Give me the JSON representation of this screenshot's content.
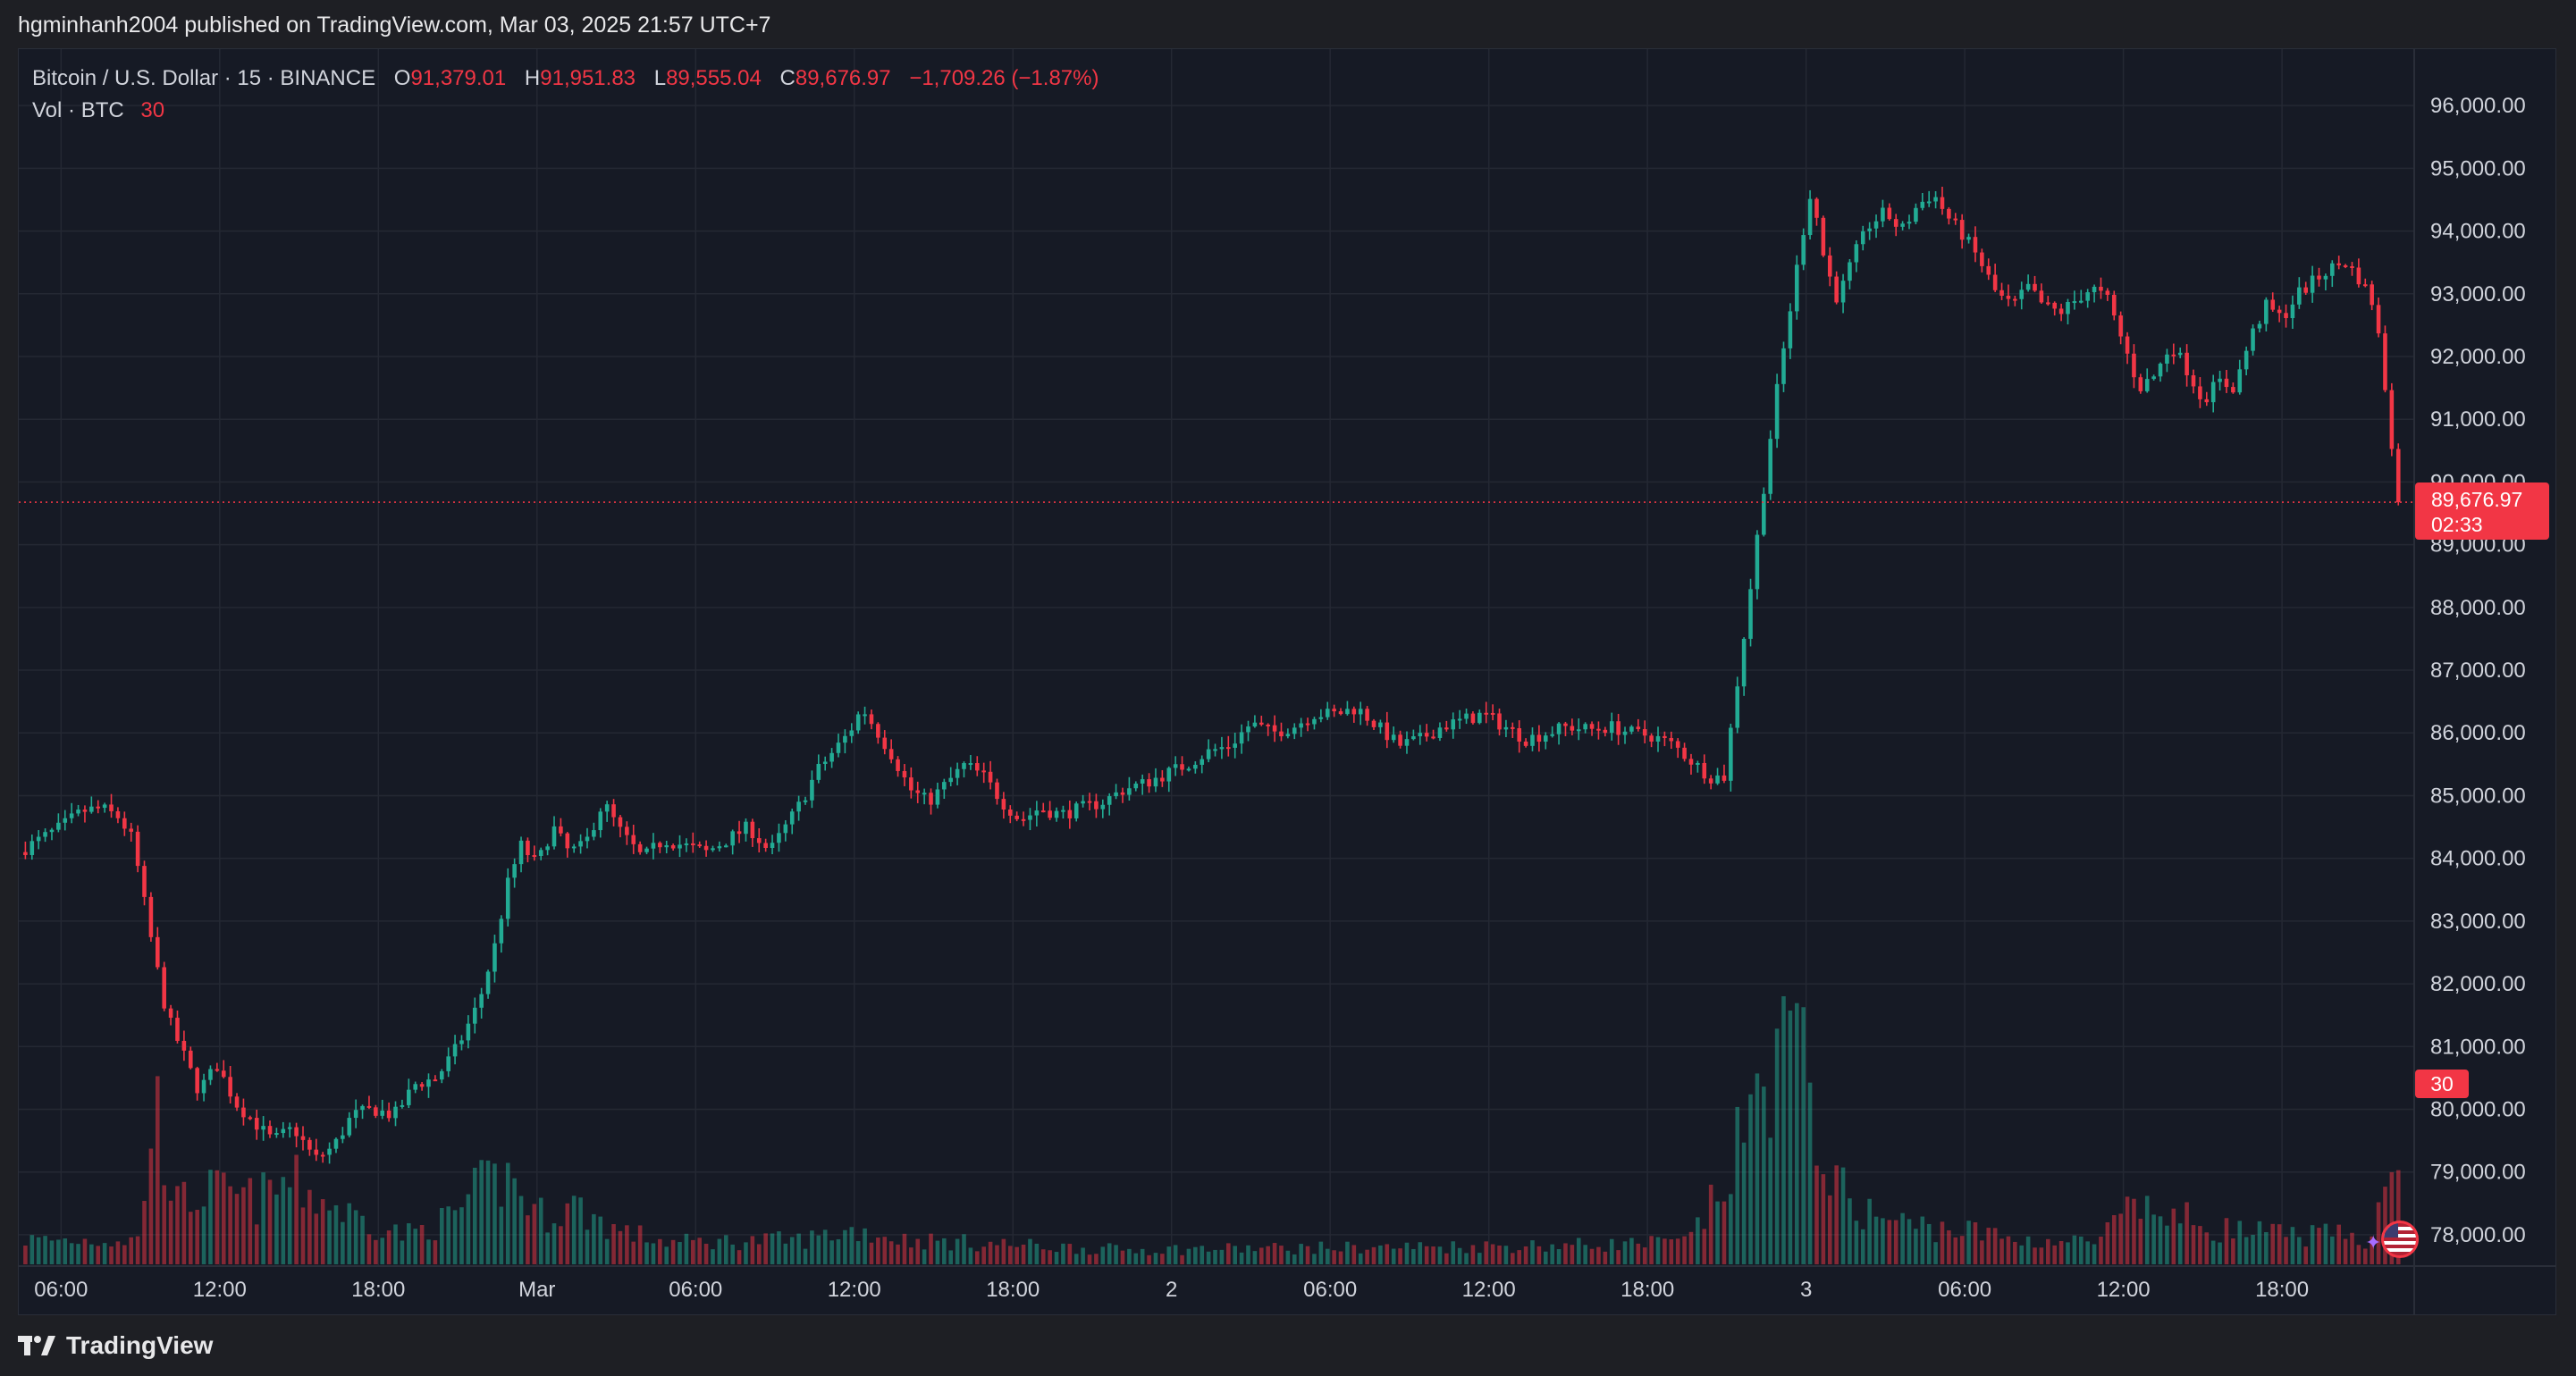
{
  "header": {
    "published_text": "hgminhanh2004 published on TradingView.com, Mar 03, 2025 21:57 UTC+7"
  },
  "legend": {
    "symbol": "Bitcoin / U.S. Dollar · 15 · BINANCE",
    "open_label": "O",
    "open": "91,379.01",
    "high_label": "H",
    "high": "91,951.83",
    "low_label": "L",
    "low": "89,555.04",
    "close_label": "C",
    "close": "89,676.97",
    "change": "−1,709.26 (−1.87%)",
    "volume_label": "Vol · BTC",
    "volume": "30"
  },
  "price_tag": {
    "price": "89,676.97",
    "countdown": "02:33"
  },
  "volume_tag": "30",
  "footer": {
    "brand": "TradingView"
  },
  "colors": {
    "background": "#161a25",
    "grid": "#242833",
    "up": "#22ab94",
    "down": "#f23645",
    "text": "#d1d4dc"
  },
  "chart_data": {
    "type": "candlestick",
    "symbol": "BTCUSD",
    "interval": "15",
    "exchange": "BINANCE",
    "y_axis_ticks": [
      "78,000.00",
      "79,000.00",
      "80,000.00",
      "81,000.00",
      "82,000.00",
      "83,000.00",
      "84,000.00",
      "85,000.00",
      "86,000.00",
      "87,000.00",
      "88,000.00",
      "89,000.00",
      "90,000.00",
      "91,000.00",
      "92,000.00",
      "93,000.00",
      "94,000.00",
      "95,000.00",
      "96,000.00"
    ],
    "ylim": [
      77500,
      96900
    ],
    "x_axis_ticks": [
      {
        "label": "06:00",
        "hour": 0
      },
      {
        "label": "12:00",
        "hour": 6
      },
      {
        "label": "18:00",
        "hour": 12
      },
      {
        "label": "Mar",
        "hour": 18
      },
      {
        "label": "06:00",
        "hour": 24
      },
      {
        "label": "12:00",
        "hour": 30
      },
      {
        "label": "18:00",
        "hour": 36
      },
      {
        "label": "2",
        "hour": 42
      },
      {
        "label": "06:00",
        "hour": 48
      },
      {
        "label": "12:00",
        "hour": 54
      },
      {
        "label": "18:00",
        "hour": 60
      },
      {
        "label": "3",
        "hour": 66
      },
      {
        "label": "06:00",
        "hour": 72
      },
      {
        "label": "12:00",
        "hour": 78
      },
      {
        "label": "18:00",
        "hour": 84
      }
    ],
    "xlim_hours": [
      -1.6,
      89.0
    ],
    "last_price": 89676.97,
    "price_path": [
      {
        "h": -1.6,
        "p": 84100
      },
      {
        "h": -0.8,
        "p": 84300
      },
      {
        "h": 0,
        "p": 84500
      },
      {
        "h": 0.8,
        "p": 84750
      },
      {
        "h": 1.5,
        "p": 84800
      },
      {
        "h": 2.2,
        "p": 84650
      },
      {
        "h": 2.7,
        "p": 84300
      },
      {
        "h": 3.1,
        "p": 83400
      },
      {
        "h": 3.5,
        "p": 82500
      },
      {
        "h": 4.0,
        "p": 81500
      },
      {
        "h": 4.6,
        "p": 80900
      },
      {
        "h": 5.2,
        "p": 80300
      },
      {
        "h": 5.9,
        "p": 80700
      },
      {
        "h": 6.6,
        "p": 80100
      },
      {
        "h": 7.3,
        "p": 79800
      },
      {
        "h": 8.0,
        "p": 79500
      },
      {
        "h": 8.8,
        "p": 79700
      },
      {
        "h": 9.6,
        "p": 79200
      },
      {
        "h": 10.3,
        "p": 79400
      },
      {
        "h": 11.0,
        "p": 79900
      },
      {
        "h": 11.8,
        "p": 80000
      },
      {
        "h": 12.6,
        "p": 79900
      },
      {
        "h": 13.4,
        "p": 80400
      },
      {
        "h": 14.2,
        "p": 80500
      },
      {
        "h": 15.0,
        "p": 81000
      },
      {
        "h": 15.8,
        "p": 81700
      },
      {
        "h": 16.4,
        "p": 82600
      },
      {
        "h": 16.9,
        "p": 83600
      },
      {
        "h": 17.4,
        "p": 84200
      },
      {
        "h": 18.0,
        "p": 83900
      },
      {
        "h": 18.6,
        "p": 84500
      },
      {
        "h": 19.2,
        "p": 84100
      },
      {
        "h": 19.8,
        "p": 84200
      },
      {
        "h": 20.5,
        "p": 84900
      },
      {
        "h": 21.2,
        "p": 84400
      },
      {
        "h": 22.0,
        "p": 84000
      },
      {
        "h": 22.8,
        "p": 84300
      },
      {
        "h": 23.6,
        "p": 84200
      },
      {
        "h": 24.4,
        "p": 84100
      },
      {
        "h": 25.2,
        "p": 84300
      },
      {
        "h": 26.0,
        "p": 84500
      },
      {
        "h": 26.8,
        "p": 84100
      },
      {
        "h": 27.4,
        "p": 84500
      },
      {
        "h": 28.0,
        "p": 84900
      },
      {
        "h": 28.6,
        "p": 85400
      },
      {
        "h": 29.2,
        "p": 85700
      },
      {
        "h": 29.8,
        "p": 86000
      },
      {
        "h": 30.3,
        "p": 86400
      },
      {
        "h": 30.9,
        "p": 86000
      },
      {
        "h": 31.5,
        "p": 85600
      },
      {
        "h": 32.1,
        "p": 85100
      },
      {
        "h": 32.8,
        "p": 84900
      },
      {
        "h": 33.5,
        "p": 85200
      },
      {
        "h": 34.2,
        "p": 85500
      },
      {
        "h": 34.9,
        "p": 85300
      },
      {
        "h": 35.6,
        "p": 84900
      },
      {
        "h": 36.3,
        "p": 84600
      },
      {
        "h": 37.0,
        "p": 84800
      },
      {
        "h": 37.8,
        "p": 84700
      },
      {
        "h": 38.6,
        "p": 84800
      },
      {
        "h": 39.4,
        "p": 84900
      },
      {
        "h": 40.2,
        "p": 85100
      },
      {
        "h": 41.0,
        "p": 85200
      },
      {
        "h": 41.8,
        "p": 85350
      },
      {
        "h": 42.6,
        "p": 85500
      },
      {
        "h": 43.4,
        "p": 85700
      },
      {
        "h": 44.2,
        "p": 85800
      },
      {
        "h": 45.0,
        "p": 86150
      },
      {
        "h": 45.8,
        "p": 86000
      },
      {
        "h": 46.6,
        "p": 86100
      },
      {
        "h": 47.4,
        "p": 86300
      },
      {
        "h": 48.2,
        "p": 86300
      },
      {
        "h": 49.0,
        "p": 86400
      },
      {
        "h": 49.8,
        "p": 86100
      },
      {
        "h": 50.6,
        "p": 85800
      },
      {
        "h": 51.4,
        "p": 85900
      },
      {
        "h": 52.2,
        "p": 86100
      },
      {
        "h": 53.0,
        "p": 86200
      },
      {
        "h": 53.8,
        "p": 86300
      },
      {
        "h": 54.6,
        "p": 86100
      },
      {
        "h": 55.4,
        "p": 85900
      },
      {
        "h": 56.2,
        "p": 86000
      },
      {
        "h": 57.0,
        "p": 86100
      },
      {
        "h": 57.8,
        "p": 86050
      },
      {
        "h": 58.6,
        "p": 86100
      },
      {
        "h": 59.4,
        "p": 86000
      },
      {
        "h": 60.2,
        "p": 85950
      },
      {
        "h": 61.0,
        "p": 85800
      },
      {
        "h": 61.8,
        "p": 85500
      },
      {
        "h": 62.4,
        "p": 85300
      },
      {
        "h": 62.9,
        "p": 85300
      },
      {
        "h": 63.3,
        "p": 86500
      },
      {
        "h": 63.8,
        "p": 88000
      },
      {
        "h": 64.3,
        "p": 89600
      },
      {
        "h": 64.8,
        "p": 91200
      },
      {
        "h": 65.3,
        "p": 92500
      },
      {
        "h": 65.8,
        "p": 93800
      },
      {
        "h": 66.2,
        "p": 94700
      },
      {
        "h": 66.7,
        "p": 93500
      },
      {
        "h": 67.2,
        "p": 92900
      },
      {
        "h": 67.8,
        "p": 93600
      },
      {
        "h": 68.4,
        "p": 94100
      },
      {
        "h": 69.0,
        "p": 94300
      },
      {
        "h": 69.6,
        "p": 94000
      },
      {
        "h": 70.2,
        "p": 94400
      },
      {
        "h": 70.8,
        "p": 94600
      },
      {
        "h": 71.4,
        "p": 94200
      },
      {
        "h": 72.0,
        "p": 93900
      },
      {
        "h": 72.6,
        "p": 93500
      },
      {
        "h": 73.2,
        "p": 93000
      },
      {
        "h": 73.8,
        "p": 92800
      },
      {
        "h": 74.4,
        "p": 93100
      },
      {
        "h": 75.0,
        "p": 92800
      },
      {
        "h": 75.6,
        "p": 92700
      },
      {
        "h": 76.2,
        "p": 92900
      },
      {
        "h": 76.8,
        "p": 93100
      },
      {
        "h": 77.4,
        "p": 92900
      },
      {
        "h": 78.0,
        "p": 92200
      },
      {
        "h": 78.6,
        "p": 91500
      },
      {
        "h": 79.2,
        "p": 91700
      },
      {
        "h": 79.8,
        "p": 92200
      },
      {
        "h": 80.4,
        "p": 91800
      },
      {
        "h": 81.0,
        "p": 91300
      },
      {
        "h": 81.6,
        "p": 91600
      },
      {
        "h": 82.2,
        "p": 91500
      },
      {
        "h": 82.8,
        "p": 92300
      },
      {
        "h": 83.4,
        "p": 92800
      },
      {
        "h": 84.0,
        "p": 92600
      },
      {
        "h": 84.6,
        "p": 93000
      },
      {
        "h": 85.2,
        "p": 93200
      },
      {
        "h": 85.8,
        "p": 93400
      },
      {
        "h": 86.4,
        "p": 93500
      },
      {
        "h": 87.0,
        "p": 93200
      },
      {
        "h": 87.5,
        "p": 92800
      },
      {
        "h": 88.0,
        "p": 91200
      },
      {
        "h": 88.4,
        "p": 89677
      }
    ],
    "volume_path": [
      {
        "h": -1.6,
        "v": 0.5
      },
      {
        "h": 3.0,
        "v": 0.5
      },
      {
        "h": 3.2,
        "v": 2.0
      },
      {
        "h": 3.6,
        "v": 3.2
      },
      {
        "h": 4.4,
        "v": 1.2
      },
      {
        "h": 5.4,
        "v": 1.5
      },
      {
        "h": 7.4,
        "v": 1.3
      },
      {
        "h": 8.6,
        "v": 1.7
      },
      {
        "h": 9.6,
        "v": 1.4
      },
      {
        "h": 11.0,
        "v": 1.0
      },
      {
        "h": 13.0,
        "v": 0.6
      },
      {
        "h": 14.6,
        "v": 0.9
      },
      {
        "h": 16.0,
        "v": 1.6
      },
      {
        "h": 17.0,
        "v": 1.8
      },
      {
        "h": 18.0,
        "v": 1.0
      },
      {
        "h": 19.4,
        "v": 1.2
      },
      {
        "h": 21.0,
        "v": 0.7
      },
      {
        "h": 23.0,
        "v": 0.45
      },
      {
        "h": 28.0,
        "v": 0.5
      },
      {
        "h": 30.0,
        "v": 0.7
      },
      {
        "h": 32.0,
        "v": 0.5
      },
      {
        "h": 40.0,
        "v": 0.3
      },
      {
        "h": 50.0,
        "v": 0.35
      },
      {
        "h": 58.0,
        "v": 0.4
      },
      {
        "h": 61.5,
        "v": 0.45
      },
      {
        "h": 62.8,
        "v": 1.5
      },
      {
        "h": 63.6,
        "v": 2.6
      },
      {
        "h": 64.3,
        "v": 3.5
      },
      {
        "h": 65.0,
        "v": 5.0
      },
      {
        "h": 65.6,
        "v": 4.2
      },
      {
        "h": 66.2,
        "v": 3.6
      },
      {
        "h": 67.0,
        "v": 1.6
      },
      {
        "h": 68.5,
        "v": 1.0
      },
      {
        "h": 70.0,
        "v": 0.8
      },
      {
        "h": 72.0,
        "v": 0.7
      },
      {
        "h": 74.0,
        "v": 0.5
      },
      {
        "h": 77.0,
        "v": 0.45
      },
      {
        "h": 78.0,
        "v": 1.0
      },
      {
        "h": 79.0,
        "v": 1.1
      },
      {
        "h": 80.5,
        "v": 0.9
      },
      {
        "h": 82.0,
        "v": 0.7
      },
      {
        "h": 84.0,
        "v": 0.6
      },
      {
        "h": 86.0,
        "v": 0.6
      },
      {
        "h": 87.4,
        "v": 0.5
      },
      {
        "h": 87.8,
        "v": 2.2
      },
      {
        "h": 88.4,
        "v": 2.8
      }
    ],
    "volume_max": 5.5,
    "volume_labels": {
      "last_volume": "30"
    }
  }
}
